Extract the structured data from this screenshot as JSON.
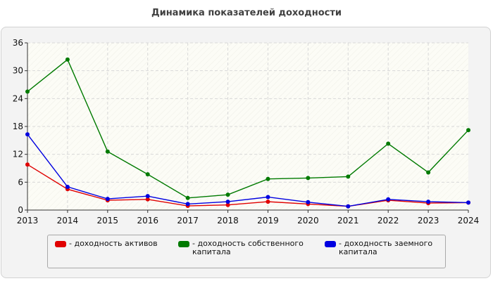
{
  "chart_data": {
    "type": "line",
    "title": "Динамика показателей доходности",
    "categories": [
      "2013",
      "2014",
      "2015",
      "2016",
      "2017",
      "2018",
      "2019",
      "2020",
      "2021",
      "2022",
      "2023",
      "2024"
    ],
    "ylim": [
      0,
      36
    ],
    "yticks": [
      "0",
      "6",
      "12",
      "18",
      "24",
      "30",
      "36"
    ],
    "grid": true,
    "legend_position": "bottom",
    "series": [
      {
        "name": "- доходность активов",
        "color": "#e00000",
        "values": [
          9.8,
          4.5,
          2.1,
          2.3,
          0.9,
          1.1,
          1.8,
          1.3,
          0.8,
          2.1,
          1.5,
          1.6
        ]
      },
      {
        "name": "- доходность собственного капитала",
        "color": "#007a00",
        "values": [
          25.5,
          32.4,
          12.6,
          7.7,
          2.6,
          3.3,
          6.7,
          6.9,
          7.2,
          14.3,
          8.1,
          17.2
        ]
      },
      {
        "name": "- доходность заемного капитала",
        "color": "#0000e0",
        "values": [
          16.3,
          5.0,
          2.4,
          3.0,
          1.3,
          1.8,
          2.8,
          1.7,
          0.8,
          2.3,
          1.8,
          1.6
        ]
      }
    ]
  }
}
